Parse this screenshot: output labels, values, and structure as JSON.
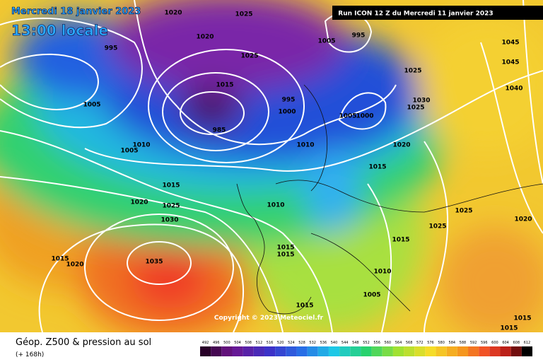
{
  "header": {
    "date": "Mercredi 18 janvier 2023",
    "time": "13:00 locale",
    "run": "Run ICON 12 Z du Mercredi 11 janvier 2023"
  },
  "copyright": "Copyright © 2023 Meteociel.fr",
  "footer": {
    "title": "Géop. Z500 & pression au sol",
    "lead": "(+ 168h)"
  },
  "scale": [
    492,
    496,
    500,
    504,
    508,
    512,
    516,
    520,
    524,
    528,
    532,
    536,
    540,
    544,
    548,
    552,
    556,
    560,
    564,
    568,
    572,
    576,
    580,
    584,
    588,
    592,
    596,
    600,
    604,
    608,
    612
  ],
  "isobar_labels": [
    1020,
    1025,
    1020,
    1025,
    995,
    1005,
    1010,
    1005,
    1015,
    1020,
    1025,
    1030,
    1035,
    1015,
    1020,
    985,
    995,
    1000,
    1010,
    1005,
    995,
    1025,
    1030,
    1025,
    1020,
    1015,
    1005,
    1000,
    1010,
    1015,
    1015,
    1010,
    1005,
    1015,
    1025,
    1025,
    1020,
    1045,
    1045,
    1040,
    1015,
    1015,
    1015,
    1015
  ]
}
